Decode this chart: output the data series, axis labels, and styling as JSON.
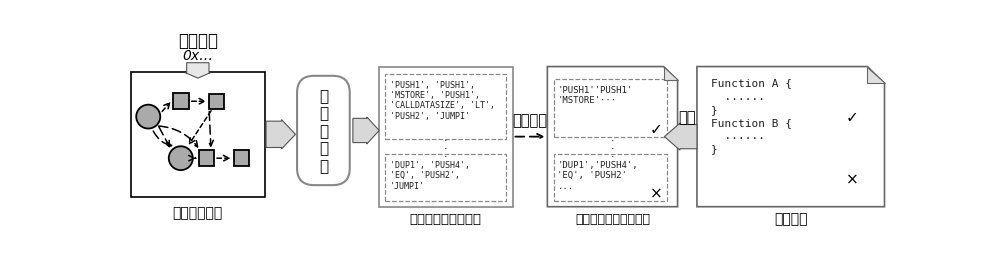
{
  "bg_color": "#ffffff",
  "box1_label": "动态控制流图",
  "box1_top_label": "交易哈希",
  "box1_top_sub": "0x…",
  "box2_label": "图\n神\n经\n网\n络",
  "box3_label": "故障元素嫌疑度排名",
  "box3_text1": "'PUSH1', 'PUSH1',\n'MSTORE', 'PUSH1',\n'CALLDATASIZE', 'LT',\n'PUSH2', 'JUMPI'",
  "box3_text2": "'DUP1', 'PUSH4',\n'EQ', 'PUSH2',\n'JUMPI'",
  "arrow_label": "损失函数",
  "box4_label": "故障函数的字节码表示",
  "box4_text1": "'PUSH1''PUSH1'\n'MSTORE'···",
  "box4_mark1": "✓",
  "box4_text2": "'DUP1','PUSH4',\n'EQ', 'PUSH2'\n...",
  "box4_mark2": "×",
  "reverse_label": "逆向",
  "box5_label": "故障函数",
  "box5_mark1": "✓",
  "box5_mark2": "×"
}
